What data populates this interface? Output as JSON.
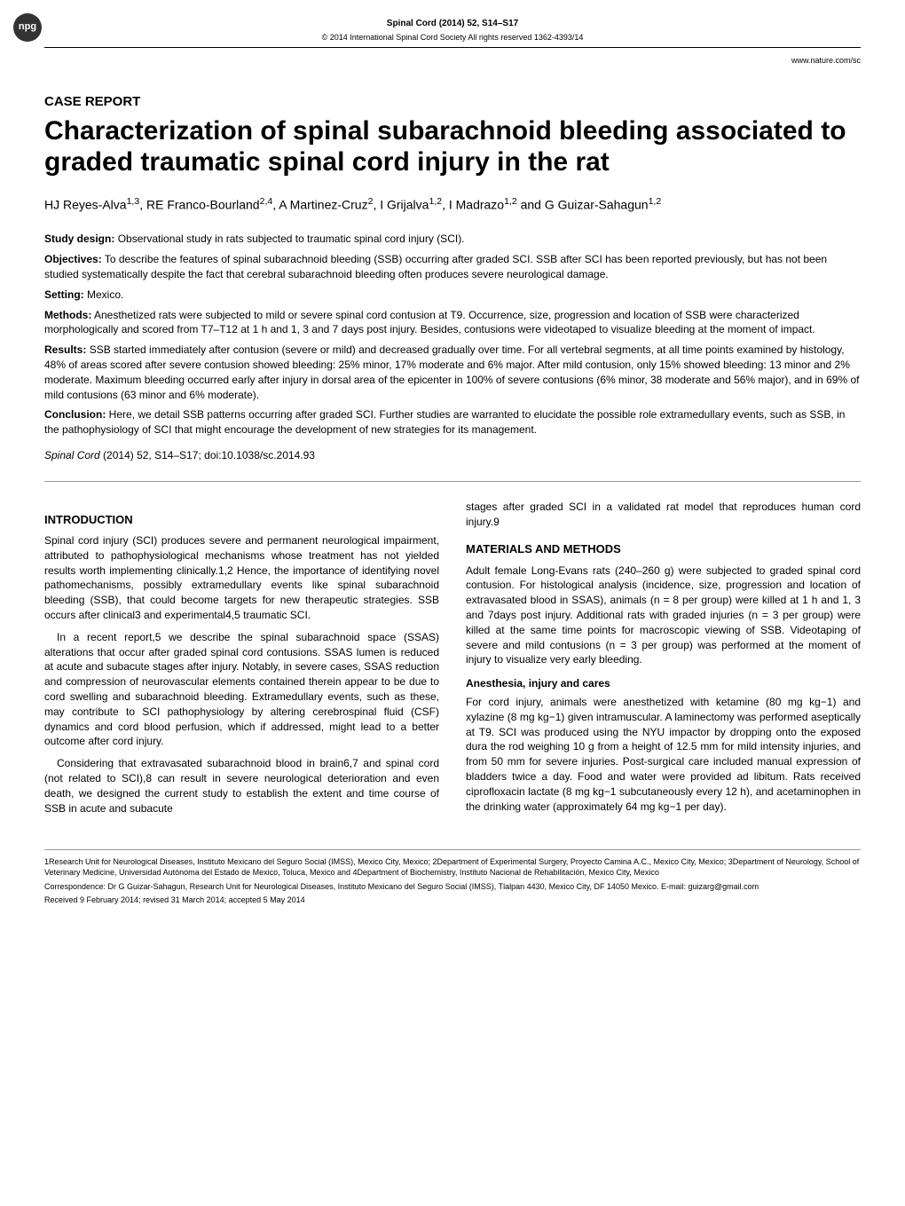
{
  "badge": "npg",
  "header": {
    "journal_line": "Spinal Cord (2014) 52, S14–S17",
    "copyright_line": "© 2014 International Spinal Cord Society All rights reserved 1362-4393/14",
    "url": "www.nature.com/sc"
  },
  "article_type": "CASE REPORT",
  "title": "Characterization of spinal subarachnoid bleeding associated to graded traumatic spinal cord injury in the rat",
  "authors": "HJ Reyes-Alva1,3, RE Franco-Bourland2,4, A Martinez-Cruz2, I Grijalva1,2, I Madrazo1,2 and G Guizar-Sahagun1,2",
  "abstract": {
    "study_design_label": "Study design:",
    "study_design": "Observational study in rats subjected to traumatic spinal cord injury (SCI).",
    "objectives_label": "Objectives:",
    "objectives": "To describe the features of spinal subarachnoid bleeding (SSB) occurring after graded SCI. SSB after SCI has been reported previously, but has not been studied systematically despite the fact that cerebral subarachnoid bleeding often produces severe neurological damage.",
    "setting_label": "Setting:",
    "setting": "Mexico.",
    "methods_label": "Methods:",
    "methods": "Anesthetized rats were subjected to mild or severe spinal cord contusion at T9. Occurrence, size, progression and location of SSB were characterized morphologically and scored from T7–T12 at 1 h and 1, 3 and 7 days post injury. Besides, contusions were videotaped to visualize bleeding at the moment of impact.",
    "results_label": "Results:",
    "results": "SSB started immediately after contusion (severe or mild) and decreased gradually over time. For all vertebral segments, at all time points examined by histology, 48% of areas scored after severe contusion showed bleeding: 25% minor, 17% moderate and 6% major. After mild contusion, only 15% showed bleeding: 13 minor and 2% moderate. Maximum bleeding occurred early after injury in dorsal area of the epicenter in 100% of severe contusions (6% minor, 38 moderate and 56% major), and in 69% of mild contusions (63 minor and 6% moderate).",
    "conclusion_label": "Conclusion:",
    "conclusion": "Here, we detail SSB patterns occurring after graded SCI. Further studies are warranted to elucidate the possible role extramedullary events, such as SSB, in the pathophysiology of SCI that might encourage the development of new strategies for its management."
  },
  "citation": {
    "journal": "Spinal Cord",
    "year_vol": "(2014) 52,",
    "pages": "S14–S17;",
    "doi": "doi:10.1038/sc.2014.93"
  },
  "sections": {
    "introduction_heading": "INTRODUCTION",
    "introduction_p1": "Spinal cord injury (SCI) produces severe and permanent neurological impairment, attributed to pathophysiological mechanisms whose treatment has not yielded results worth implementing clinically.1,2 Hence, the importance of identifying novel pathomechanisms, possibly extramedullary events like spinal subarachnoid bleeding (SSB), that could become targets for new therapeutic strategies. SSB occurs after clinical3 and experimental4,5 traumatic SCI.",
    "introduction_p2": "In a recent report,5 we describe the spinal subarachnoid space (SSAS) alterations that occur after graded spinal cord contusions. SSAS lumen is reduced at acute and subacute stages after injury. Notably, in severe cases, SSAS reduction and compression of neurovascular elements contained therein appear to be due to cord swelling and subarachnoid bleeding. Extramedullary events, such as these, may contribute to SCI pathophysiology by altering cerebrospinal fluid (CSF) dynamics and cord blood perfusion, which if addressed, might lead to a better outcome after cord injury.",
    "introduction_p3": "Considering that extravasated subarachnoid blood in brain6,7 and spinal cord (not related to SCI),8 can result in severe neurological deterioration and even death, we designed the current study to establish the extent and time course of SSB in acute and subacute",
    "introduction_p4": "stages after graded SCI in a validated rat model that reproduces human cord injury.9",
    "materials_heading": "MATERIALS AND METHODS",
    "materials_p1": "Adult female Long-Evans rats (240–260 g) were subjected to graded spinal cord contusion. For histological analysis (incidence, size, progression and location of extravasated blood in SSAS), animals (n = 8 per group) were killed at 1 h and 1, 3 and 7days post injury. Additional rats with graded injuries (n = 3 per group) were killed at the same time points for macroscopic viewing of SSB. Videotaping of severe and mild contusions (n = 3 per group) was performed at the moment of injury to visualize very early bleeding.",
    "anesthesia_heading": "Anesthesia, injury and cares",
    "anesthesia_p1": "For cord injury, animals were anesthetized with ketamine (80 mg kg−1) and xylazine (8 mg kg−1) given intramuscular. A laminectomy was performed aseptically at T9. SCI was produced using the NYU impactor by dropping onto the exposed dura the rod weighing 10 g from a height of 12.5 mm for mild intensity injuries, and from 50 mm for severe injuries. Post-surgical care included manual expression of bladders twice a day. Food and water were provided ad libitum. Rats received ciprofloxacin lactate (8 mg kg−1 subcutaneously every 12 h), and acetaminophen in the drinking water (approximately 64 mg kg−1 per day)."
  },
  "footer": {
    "affiliations": "1Research Unit for Neurological Diseases, Instituto Mexicano del Seguro Social (IMSS), Mexico City, Mexico; 2Department of Experimental Surgery, Proyecto Camina A.C., Mexico City, Mexico; 3Department of Neurology, School of Veterinary Medicine, Universidad Autónoma del Estado de Mexico, Toluca, Mexico and 4Department of Biochemistry, Instituto Nacional de Rehabilitación, Mexico City, Mexico",
    "correspondence": "Correspondence: Dr G Guizar-Sahagun, Research Unit for Neurological Diseases, Instituto Mexicano del Seguro Social (IMSS), Tlalpan 4430, Mexico City, DF 14050 Mexico. E-mail: guizarg@gmail.com",
    "received": "Received 9 February 2014; revised 31 March 2014; accepted 5 May 2014"
  }
}
